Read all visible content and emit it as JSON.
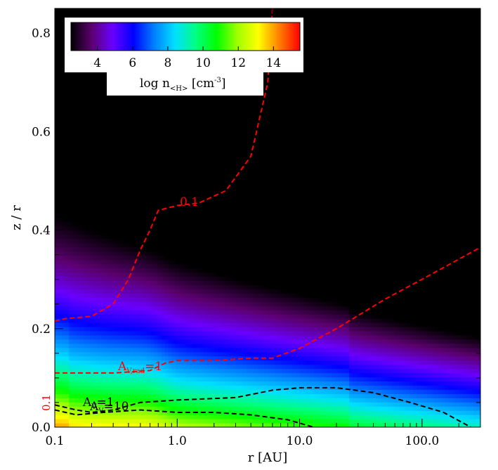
{
  "chart_data": {
    "type": "heatmap",
    "xlabel": "r [AU]",
    "ylabel": "z / r",
    "xscale": "log",
    "xlim": [
      0.1,
      300
    ],
    "ylim": [
      0.0,
      0.85
    ],
    "x_ticks": [
      {
        "value": 0.1,
        "label": "0.1"
      },
      {
        "value": 1.0,
        "label": "1.0"
      },
      {
        "value": 10.0,
        "label": "10.0"
      },
      {
        "value": 100.0,
        "label": "100.0"
      }
    ],
    "y_ticks": [
      {
        "value": 0.0,
        "label": "0.0"
      },
      {
        "value": 0.2,
        "label": "0.2"
      },
      {
        "value": 0.4,
        "label": "0.4"
      },
      {
        "value": 0.6,
        "label": "0.6"
      },
      {
        "value": 0.8,
        "label": "0.8"
      }
    ],
    "colorbar": {
      "title_main": "log n",
      "title_sub": "<H>",
      "title_unit": "[cm",
      "title_exp": "-3",
      "title_close": "]",
      "range": [
        2.5,
        15.5
      ],
      "ticks": [
        {
          "value": 4,
          "label": "4"
        },
        {
          "value": 6,
          "label": "6"
        },
        {
          "value": 8,
          "label": "8"
        },
        {
          "value": 10,
          "label": "10"
        },
        {
          "value": 12,
          "label": "12"
        },
        {
          "value": 14,
          "label": "14"
        }
      ],
      "colors": [
        "#000000",
        "#5c0070",
        "#6a00ff",
        "#0000ff",
        "#0080ff",
        "#00e0ff",
        "#00ff80",
        "#00ff00",
        "#a0ff00",
        "#ffff00",
        "#ff8000",
        "#ff0000"
      ]
    },
    "contours": [
      {
        "label": "0.1",
        "color": "#ff0000",
        "points": [
          [
            0.1,
            0.215
          ],
          [
            0.12,
            0.22
          ],
          [
            0.2,
            0.225
          ],
          [
            0.3,
            0.25
          ],
          [
            0.4,
            0.3
          ],
          [
            0.5,
            0.36
          ],
          [
            0.6,
            0.4
          ],
          [
            0.7,
            0.44
          ],
          [
            1.0,
            0.45
          ],
          [
            1.5,
            0.455
          ],
          [
            2.5,
            0.48
          ],
          [
            4.0,
            0.55
          ],
          [
            5.5,
            0.7
          ],
          [
            6.0,
            0.85
          ]
        ]
      },
      {
        "label_main": "A",
        "label_sub": "V,rad",
        "label_tail": "=1",
        "color": "#ff0000",
        "points": [
          [
            0.1,
            0.11
          ],
          [
            0.3,
            0.11
          ],
          [
            0.6,
            0.115
          ],
          [
            0.8,
            0.13
          ],
          [
            1.0,
            0.135
          ],
          [
            2.0,
            0.135
          ],
          [
            4.0,
            0.14
          ],
          [
            6.0,
            0.14
          ],
          [
            10.0,
            0.16
          ],
          [
            20.0,
            0.2
          ],
          [
            50.0,
            0.26
          ],
          [
            100.0,
            0.3
          ],
          [
            300.0,
            0.365
          ]
        ]
      },
      {
        "label_main": "A",
        "label_sub": "V",
        "label_tail": "=1",
        "color": "#000000",
        "points": [
          [
            0.1,
            0.045
          ],
          [
            0.15,
            0.035
          ],
          [
            0.2,
            0.03
          ],
          [
            0.3,
            0.035
          ],
          [
            0.5,
            0.05
          ],
          [
            1.0,
            0.055
          ],
          [
            3.0,
            0.06
          ],
          [
            6.0,
            0.075
          ],
          [
            10.0,
            0.08
          ],
          [
            20.0,
            0.08
          ],
          [
            40.0,
            0.07
          ],
          [
            80.0,
            0.05
          ],
          [
            150.0,
            0.03
          ],
          [
            250.0,
            0.0
          ]
        ]
      },
      {
        "label_main": "A",
        "label_sub": "V",
        "label_tail": "=10",
        "color": "#000000",
        "points": [
          [
            0.1,
            0.035
          ],
          [
            0.15,
            0.025
          ],
          [
            0.25,
            0.03
          ],
          [
            0.5,
            0.035
          ],
          [
            1.0,
            0.03
          ],
          [
            2.0,
            0.03
          ],
          [
            4.0,
            0.025
          ],
          [
            8.0,
            0.015
          ],
          [
            13.0,
            0.0
          ]
        ]
      }
    ],
    "side_label": "0.1"
  }
}
